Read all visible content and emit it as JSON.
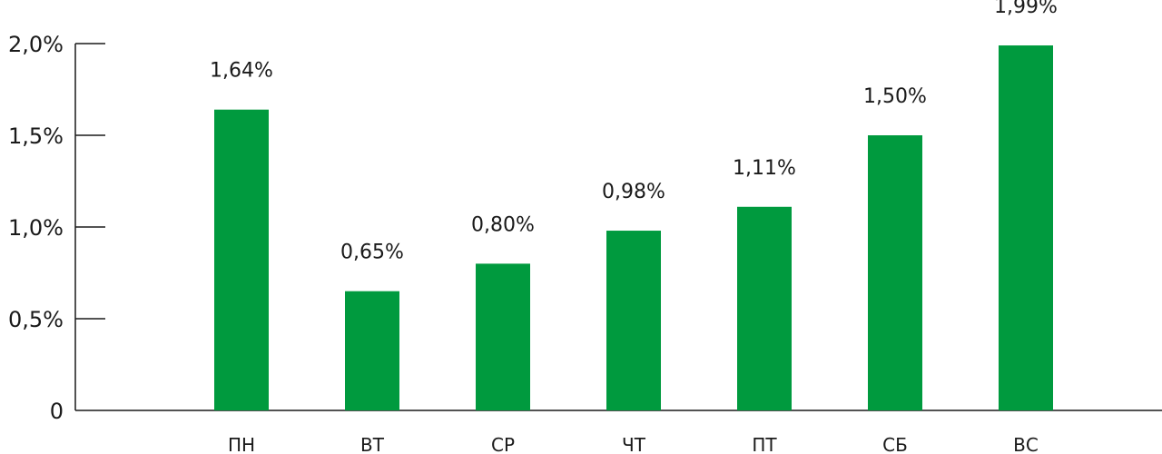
{
  "chart_data": {
    "type": "bar",
    "categories": [
      "ПН",
      "ВТ",
      "СР",
      "ЧТ",
      "ПТ",
      "СБ",
      "ВС"
    ],
    "values": [
      1.64,
      0.65,
      0.8,
      0.98,
      1.11,
      1.5,
      1.99
    ],
    "data_labels": [
      "1,64%",
      "0,65%",
      "0,80%",
      "0,98%",
      "1,11%",
      "1,50%",
      "1,99%"
    ],
    "yticks": [
      0,
      0.5,
      1.0,
      1.5,
      2.0
    ],
    "ytick_labels": [
      "0",
      "0,5%",
      "1,0%",
      "1,5%",
      "2,0%"
    ],
    "ylim": [
      0,
      2.0
    ],
    "title": "",
    "xlabel": "",
    "ylabel": "",
    "grid": false,
    "colors": {
      "bar": "#009a3e",
      "axis": "#1a1a1a",
      "text": "#1a1a1a"
    }
  }
}
